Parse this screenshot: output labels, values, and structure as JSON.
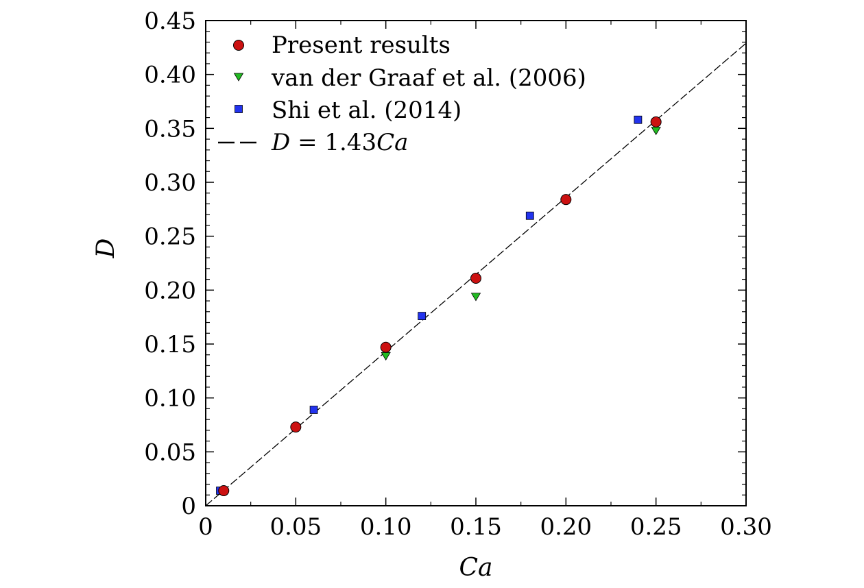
{
  "chart_data": {
    "type": "scatter",
    "xlabel": "Ca",
    "ylabel": "D",
    "xlim": [
      0,
      0.3
    ],
    "ylim": [
      0,
      0.45
    ],
    "x_ticks": [
      "0",
      "0.05",
      "0.10",
      "0.15",
      "0.20",
      "0.25",
      "0.30"
    ],
    "x_tick_values": [
      0,
      0.05,
      0.1,
      0.15,
      0.2,
      0.25,
      0.3
    ],
    "y_ticks": [
      "0",
      "0.05",
      "0.10",
      "0.15",
      "0.20",
      "0.25",
      "0.30",
      "0.35",
      "0.40",
      "0.45"
    ],
    "y_tick_values": [
      0,
      0.05,
      0.1,
      0.15,
      0.2,
      0.25,
      0.3,
      0.35,
      0.4,
      0.45
    ],
    "grid": false,
    "legend_position": "top-left",
    "series": [
      {
        "name": "Present results",
        "marker": "circle",
        "color": "#cc1111",
        "x": [
          0.01,
          0.05,
          0.1,
          0.15,
          0.2,
          0.25
        ],
        "y": [
          0.014,
          0.073,
          0.147,
          0.211,
          0.284,
          0.356
        ]
      },
      {
        "name": "van der Graaf et al. (2006)",
        "marker": "triangle-down",
        "color": "#22bb22",
        "x": [
          0.1,
          0.15,
          0.25
        ],
        "y": [
          0.139,
          0.194,
          0.348
        ]
      },
      {
        "name": "Shi et al. (2014)",
        "marker": "square",
        "color": "#2233ee",
        "x": [
          0.008,
          0.06,
          0.12,
          0.18,
          0.24
        ],
        "y": [
          0.014,
          0.089,
          0.176,
          0.269,
          0.358
        ]
      }
    ],
    "fit_line": {
      "label_var": "D",
      "label_eq": " = 1.43",
      "label_ca": "Ca",
      "slope": 1.43,
      "style": "dashed",
      "color": "#000000"
    }
  }
}
